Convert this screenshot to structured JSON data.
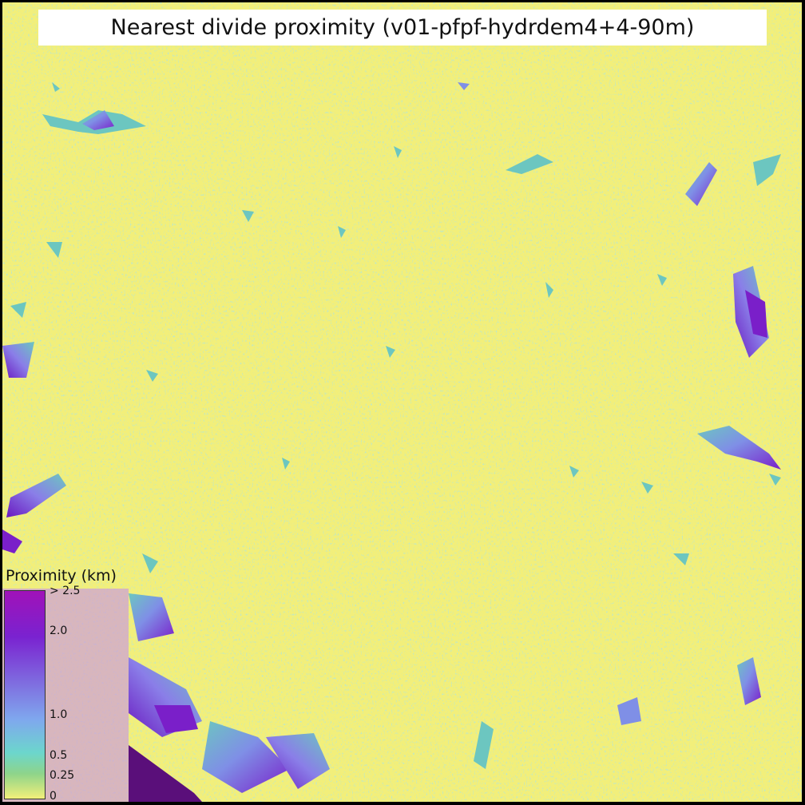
{
  "map": {
    "title": "Nearest divide proximity (v01-pfpf-hydrdem4+4-90m)",
    "background_color": "#f2ef7a",
    "palette": {
      "low": "#f2ef7a",
      "mid": "#6cc6c0",
      "mid2": "#7f8fe6",
      "high": "#7a1fc9",
      "max": "#5a0f7a"
    }
  },
  "legend": {
    "title": "Proximity (km)",
    "ticks": [
      {
        "label": "> 2.5",
        "value": 2.5
      },
      {
        "label": "2.0",
        "value": 2.0
      },
      {
        "label": "1.0",
        "value": 1.0
      },
      {
        "label": "0.5",
        "value": 0.5
      },
      {
        "label": "0.25",
        "value": 0.25
      },
      {
        "label": "0",
        "value": 0
      }
    ]
  }
}
